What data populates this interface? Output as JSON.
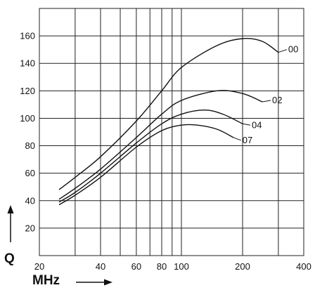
{
  "chart_data": {
    "type": "line",
    "title": "",
    "xlabel": "MHz",
    "ylabel": "Q",
    "x_scale": "log",
    "xlim": [
      20,
      400
    ],
    "ylim": [
      0,
      180
    ],
    "grid": true,
    "x_ticks": [
      20,
      40,
      60,
      80,
      100,
      200,
      400
    ],
    "x_gridlines": [
      20,
      30,
      40,
      50,
      60,
      70,
      80,
      90,
      100,
      200,
      300,
      400
    ],
    "y_ticks": [
      20,
      40,
      60,
      80,
      100,
      120,
      140,
      160
    ],
    "series": [
      {
        "name": "00",
        "x": [
          25,
          30,
          40,
          60,
          80,
          100,
          150,
          200,
          250,
          300
        ],
        "values": [
          48,
          57,
          72,
          98,
          120,
          137,
          153,
          158,
          156,
          148
        ]
      },
      {
        "name": "02",
        "x": [
          25,
          30,
          40,
          60,
          80,
          100,
          150,
          200,
          250
        ],
        "values": [
          41,
          49,
          63,
          86,
          103,
          113,
          120,
          118,
          112
        ]
      },
      {
        "name": "04",
        "x": [
          25,
          30,
          40,
          60,
          80,
          100,
          130,
          160,
          200
        ],
        "values": [
          39,
          46,
          60,
          82,
          96,
          103,
          106,
          103,
          96
        ]
      },
      {
        "name": "07",
        "x": [
          25,
          30,
          40,
          60,
          80,
          100,
          120,
          150,
          180
        ],
        "values": [
          37,
          44,
          57,
          79,
          91,
          95,
          95,
          92,
          86
        ]
      }
    ]
  }
}
